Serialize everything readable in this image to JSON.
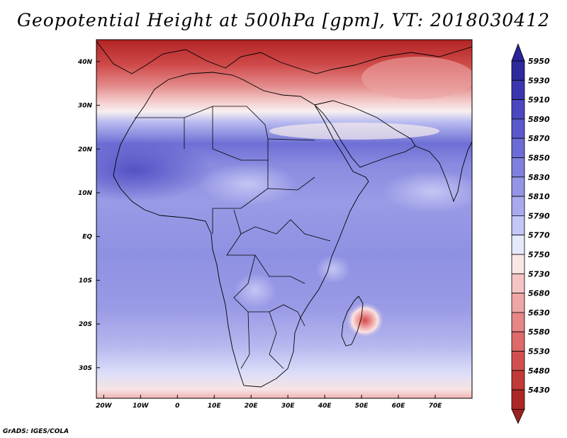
{
  "title": "Geopotential Height at 500hPa [gpm], VT: 2018030412",
  "credit": "GrADS: IGES/COLA",
  "map": {
    "projection": "latlon",
    "lon_range": [
      -22,
      80
    ],
    "lat_range": [
      -37,
      45
    ],
    "lon_ticks": [
      "20W",
      "10W",
      "0",
      "10E",
      "20E",
      "30E",
      "40E",
      "50E",
      "60E",
      "70E"
    ],
    "lat_ticks": [
      "40N",
      "30N",
      "20N",
      "10N",
      "EQ",
      "10S",
      "20S",
      "30S"
    ],
    "field": "geopotential height 500hPa",
    "units": "gpm"
  },
  "colorbar": {
    "labels": [
      "5950",
      "5930",
      "5910",
      "5890",
      "5870",
      "5850",
      "5830",
      "5810",
      "5790",
      "5770",
      "5750",
      "5730",
      "5680",
      "5630",
      "5580",
      "5530",
      "5480",
      "5430"
    ],
    "colors": [
      "#2d2a9e",
      "#3a36b0",
      "#4a47c0",
      "#5a58cc",
      "#6c6cd6",
      "#7f80de",
      "#9495e6",
      "#a9aaee",
      "#c4c6f5",
      "#e6e8fb",
      "#fbe6e6",
      "#f5c4c4",
      "#eea6a6",
      "#e68686",
      "#de6a6a",
      "#d24f4f",
      "#c23939",
      "#ad2727"
    ],
    "top_arrow_color": "#2a239a",
    "bottom_arrow_color": "#9e1f1f"
  }
}
